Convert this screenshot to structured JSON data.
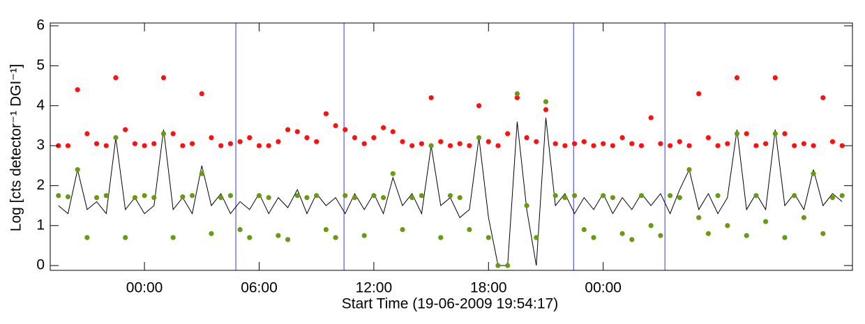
{
  "chart_data": {
    "type": "scatter",
    "x_label": "Start Time (19-06-2009 19:54:17)",
    "y_label": "Log [cts detector⁻¹ DGI⁻¹]",
    "xlim": [
      -4.93,
      37.04
    ],
    "ylim": [
      -0.12,
      6.07
    ],
    "xticks": [
      {
        "value": 0,
        "label": "00:00"
      },
      {
        "value": 6,
        "label": "06:00"
      },
      {
        "value": 12,
        "label": "12:00"
      },
      {
        "value": 18,
        "label": "18:00"
      },
      {
        "value": 24,
        "label": "00:00"
      }
    ],
    "yticks": [
      0,
      1,
      2,
      3,
      4,
      5,
      6
    ],
    "vlines": [
      4.78,
      10.44,
      22.45,
      27.23
    ],
    "vline_color": "#3333ff",
    "x": [
      -4.5,
      -4,
      -3.5,
      -3,
      -2.5,
      -2,
      -1.5,
      -1,
      -0.5,
      0,
      0.5,
      1,
      1.5,
      2,
      2.5,
      3,
      3.5,
      4,
      4.5,
      5,
      5.5,
      6,
      6.5,
      7,
      7.5,
      8,
      8.5,
      9,
      9.5,
      10,
      10.5,
      11,
      11.5,
      12,
      12.5,
      13,
      13.5,
      14,
      14.5,
      15,
      15.5,
      16,
      16.5,
      17,
      17.5,
      18,
      18.5,
      19,
      19.5,
      20,
      20.5,
      21,
      21.5,
      22,
      22.5,
      23,
      23.5,
      24,
      24.5,
      25,
      25.5,
      26,
      26.5,
      27,
      27.5,
      28,
      28.5,
      29,
      29.5,
      30,
      30.5,
      31,
      31.5,
      32,
      32.5,
      33,
      33.5,
      34,
      34.5,
      35,
      35.5,
      36,
      36.5
    ],
    "series": [
      {
        "mode": "lines",
        "color": "#000000",
        "values": [
          1.5,
          1.3,
          2.4,
          1.4,
          1.6,
          1.3,
          3.2,
          1.4,
          1.7,
          1.3,
          1.5,
          3.4,
          1.4,
          1.7,
          1.3,
          2.5,
          1.5,
          1.8,
          1.3,
          1.6,
          1.4,
          1.8,
          1.3,
          1.7,
          1.45,
          1.9,
          1.3,
          1.8,
          1.5,
          1.7,
          1.3,
          1.8,
          1.4,
          1.8,
          1.3,
          2.2,
          1.5,
          1.8,
          1.3,
          3.0,
          1.5,
          1.7,
          1.2,
          1.4,
          3.2,
          1.2,
          0,
          0,
          3.6,
          1.4,
          0,
          3.7,
          1.5,
          1.8,
          1.3,
          1.7,
          1.4,
          1.8,
          1.3,
          1.7,
          1.4,
          1.8,
          1.5,
          1.8,
          1.3,
          1.9,
          2.4,
          1.4,
          1.8,
          1.3,
          1.7,
          3.4,
          1.4,
          1.8,
          1.4,
          3.4,
          1.5,
          1.8,
          1.4,
          2.4,
          1.5,
          1.8,
          1.6
        ]
      },
      {
        "mode": "markers",
        "color": "#ff1010",
        "values": [
          3.0,
          3.0,
          4.4,
          3.3,
          3.05,
          3.0,
          4.7,
          3.4,
          3.05,
          3.0,
          3.05,
          4.7,
          3.3,
          3.0,
          3.05,
          4.3,
          3.2,
          3.0,
          3.05,
          3.1,
          3.2,
          3.0,
          3.0,
          3.1,
          3.4,
          3.35,
          3.2,
          3.1,
          3.8,
          3.5,
          3.4,
          3.2,
          3.05,
          3.2,
          3.45,
          3.35,
          3.1,
          3.0,
          3.05,
          4.2,
          3.1,
          3.0,
          3.05,
          3.0,
          4.0,
          3.1,
          3.0,
          3.3,
          4.2,
          3.2,
          3.1,
          3.9,
          3.05,
          3.0,
          3.05,
          3.1,
          3.0,
          3.05,
          3.0,
          3.2,
          3.05,
          3.0,
          3.7,
          3.05,
          3.0,
          3.1,
          3.0,
          4.3,
          3.2,
          3.0,
          3.05,
          4.7,
          3.3,
          3.0,
          3.05,
          4.7,
          3.3,
          3.0,
          3.05,
          3.0,
          4.2,
          3.1,
          3.0
        ]
      },
      {
        "mode": "markers",
        "color": "#6a9a12",
        "values": [
          1.75,
          1.72,
          2.4,
          0.7,
          1.7,
          1.75,
          3.2,
          0.7,
          1.7,
          1.75,
          1.7,
          3.3,
          0.7,
          1.72,
          1.75,
          2.3,
          0.8,
          1.7,
          1.75,
          0.9,
          0.7,
          1.75,
          1.7,
          0.75,
          0.65,
          1.75,
          1.7,
          1.75,
          0.9,
          0.7,
          1.75,
          1.7,
          0.75,
          1.75,
          1.7,
          2.3,
          0.9,
          1.7,
          1.75,
          3.0,
          0.7,
          1.75,
          1.7,
          0.9,
          3.2,
          0.7,
          0,
          0,
          4.3,
          1.5,
          0.7,
          4.1,
          1.75,
          1.7,
          1.75,
          0.9,
          0.7,
          1.75,
          1.7,
          0.8,
          0.65,
          1.75,
          1.0,
          0.75,
          1.75,
          1.7,
          2.4,
          1.2,
          0.8,
          1.75,
          1.0,
          3.3,
          0.75,
          1.75,
          1.1,
          3.3,
          0.7,
          1.75,
          1.2,
          2.3,
          0.8,
          1.7,
          1.75
        ]
      }
    ]
  }
}
